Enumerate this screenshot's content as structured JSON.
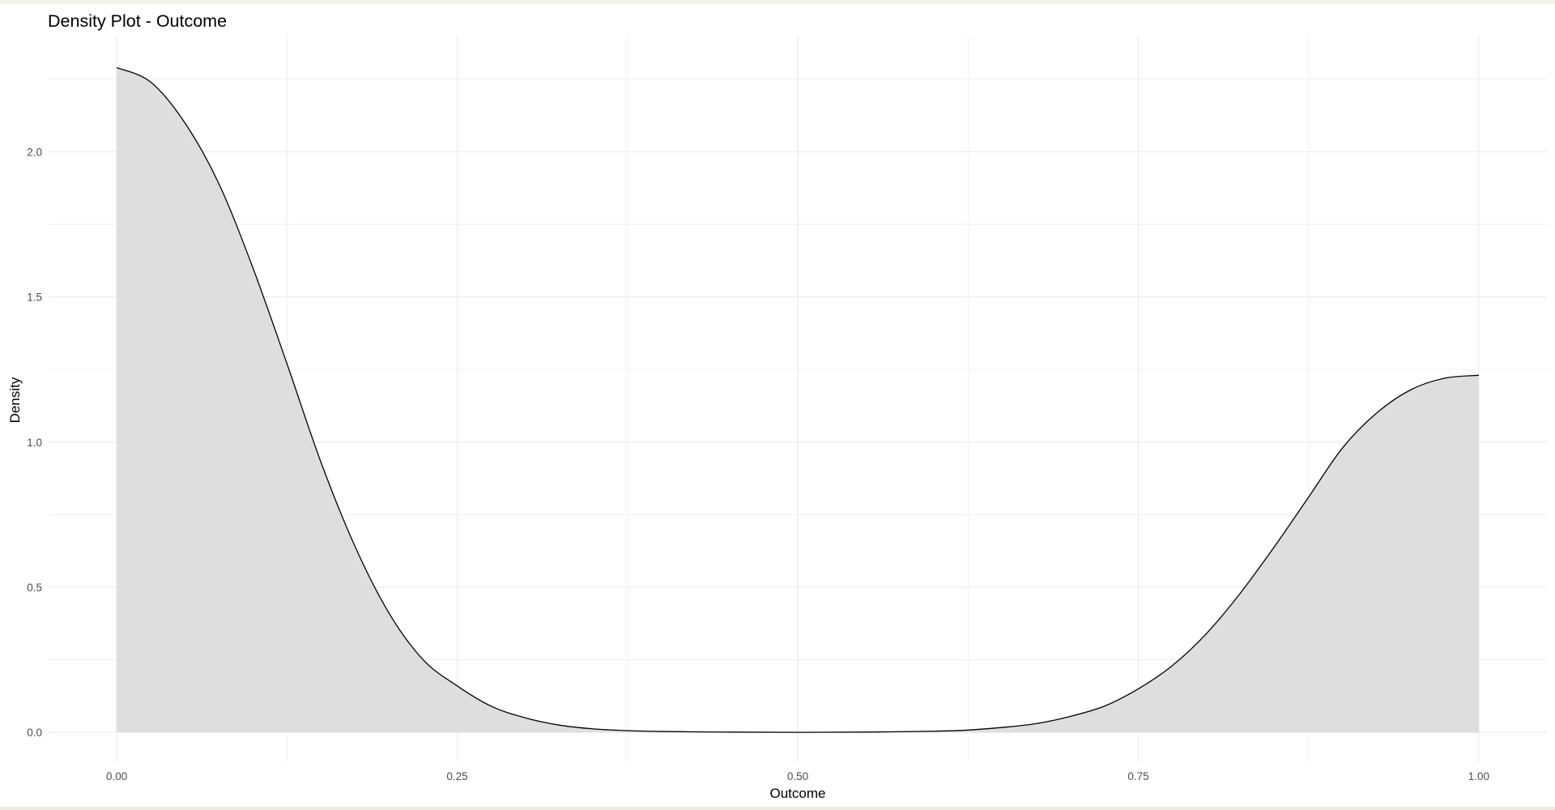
{
  "chart_data": {
    "type": "area",
    "subtype": "density",
    "title": "Density Plot - Outcome",
    "xlabel": "Outcome",
    "ylabel": "Density",
    "xlim": [
      -0.05,
      1.05
    ],
    "ylim": [
      -0.1,
      2.4
    ],
    "xticks": [
      0,
      0.25,
      0.5,
      0.75,
      1
    ],
    "xtick_labels": [
      "0.00",
      "0.25",
      "0.50",
      "0.75",
      "1.00"
    ],
    "yticks": [
      0,
      0.5,
      1,
      1.5,
      2
    ],
    "ytick_labels": [
      "0.0",
      "0.5",
      "1.0",
      "1.5",
      "2.0"
    ],
    "grid": true,
    "legend": "none",
    "fill_color": "#dedede",
    "line_color": "#000000",
    "grid_color": "#ebebeb",
    "x": [
      0,
      0.025,
      0.05,
      0.075,
      0.1,
      0.125,
      0.15,
      0.175,
      0.2,
      0.225,
      0.25,
      0.275,
      0.3,
      0.325,
      0.35,
      0.375,
      0.4,
      0.45,
      0.5,
      0.55,
      0.6,
      0.625,
      0.65,
      0.675,
      0.7,
      0.725,
      0.75,
      0.775,
      0.8,
      0.825,
      0.85,
      0.875,
      0.9,
      0.925,
      0.95,
      0.975,
      1
    ],
    "y": [
      2.29,
      2.24,
      2.1,
      1.89,
      1.6,
      1.27,
      0.93,
      0.64,
      0.41,
      0.25,
      0.16,
      0.09,
      0.05,
      0.025,
      0.012,
      0.006,
      0.003,
      0.001,
      0.0,
      0.001,
      0.004,
      0.008,
      0.017,
      0.03,
      0.055,
      0.09,
      0.15,
      0.23,
      0.34,
      0.48,
      0.64,
      0.81,
      0.98,
      1.1,
      1.18,
      1.22,
      1.23
    ]
  }
}
